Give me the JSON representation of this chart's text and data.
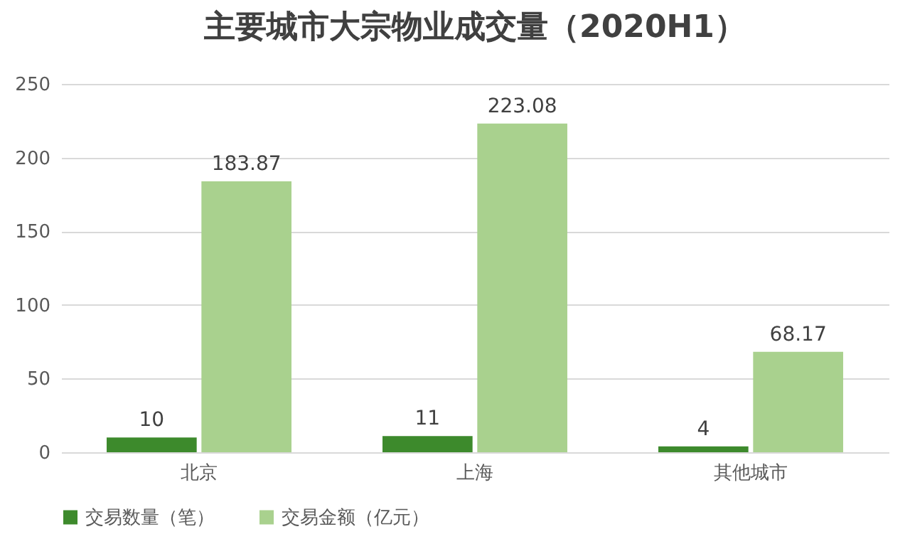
{
  "chart_data": {
    "type": "bar",
    "title": "主要城市大宗物业成交量（2020H1）",
    "categories": [
      "北京",
      "上海",
      "其他城市"
    ],
    "series": [
      {
        "name": "交易数量（笔）",
        "color": "#3d8a2c",
        "values": [
          10,
          11,
          4
        ]
      },
      {
        "name": "交易金额（亿元）",
        "color": "#a9d18e",
        "values": [
          183.87,
          223.08,
          68.17
        ]
      }
    ],
    "ylim": [
      0,
      250
    ],
    "yticks": [
      0,
      50,
      100,
      150,
      200,
      250
    ],
    "grid": "y",
    "legend": "bottom",
    "data_labels": true
  }
}
